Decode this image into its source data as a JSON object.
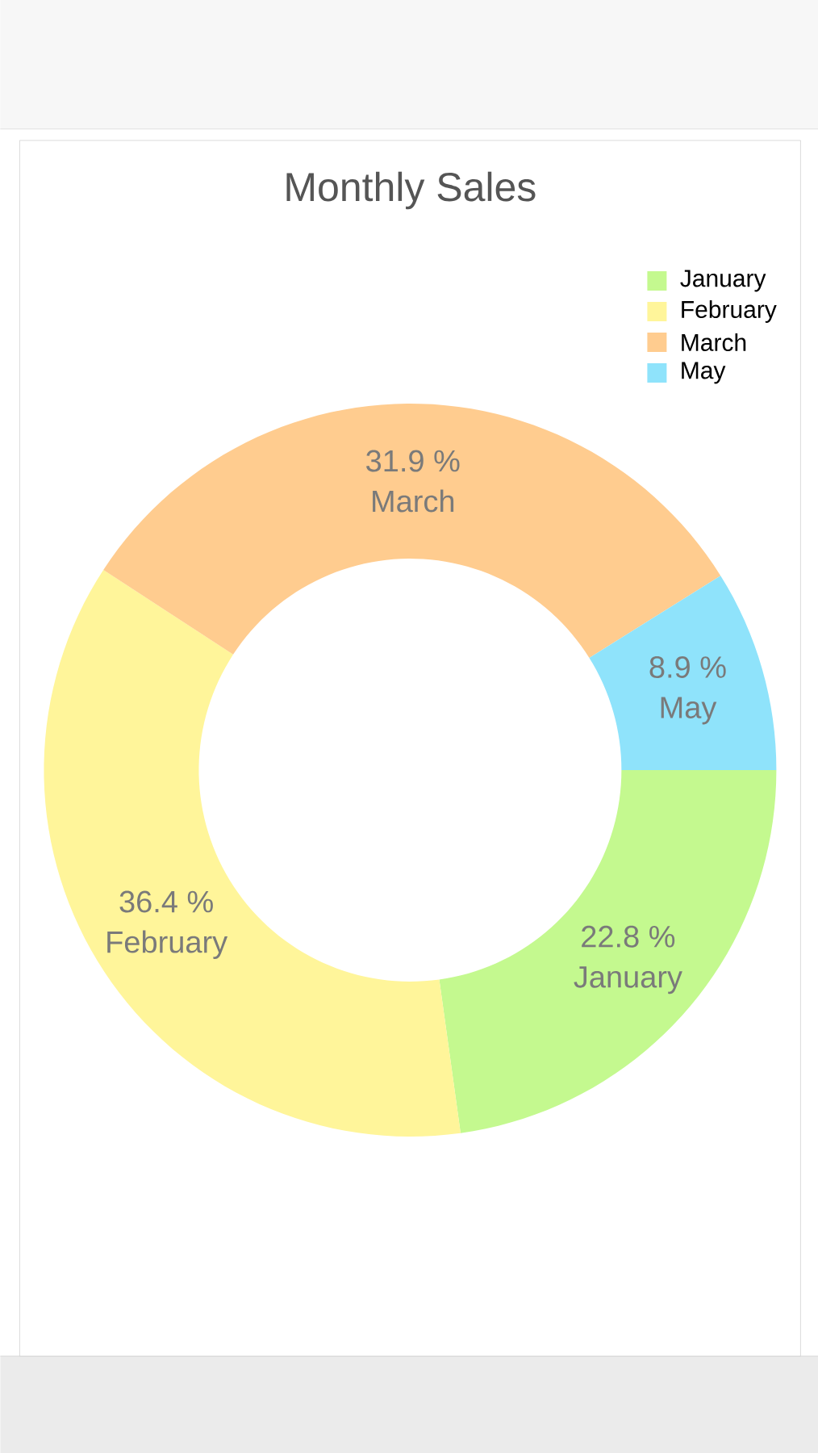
{
  "chart_data": {
    "type": "donut",
    "title": "Monthly Sales",
    "categories": [
      "January",
      "February",
      "March",
      "May"
    ],
    "values": [
      22.8,
      36.4,
      31.9,
      8.9
    ],
    "colors": [
      "#c4f98f",
      "#fff59a",
      "#ffcc8f",
      "#8fe3fb"
    ],
    "value_labels": [
      "22.8 %",
      "36.4 %",
      "31.9 %",
      "8.9 %"
    ],
    "legend": "top right"
  }
}
